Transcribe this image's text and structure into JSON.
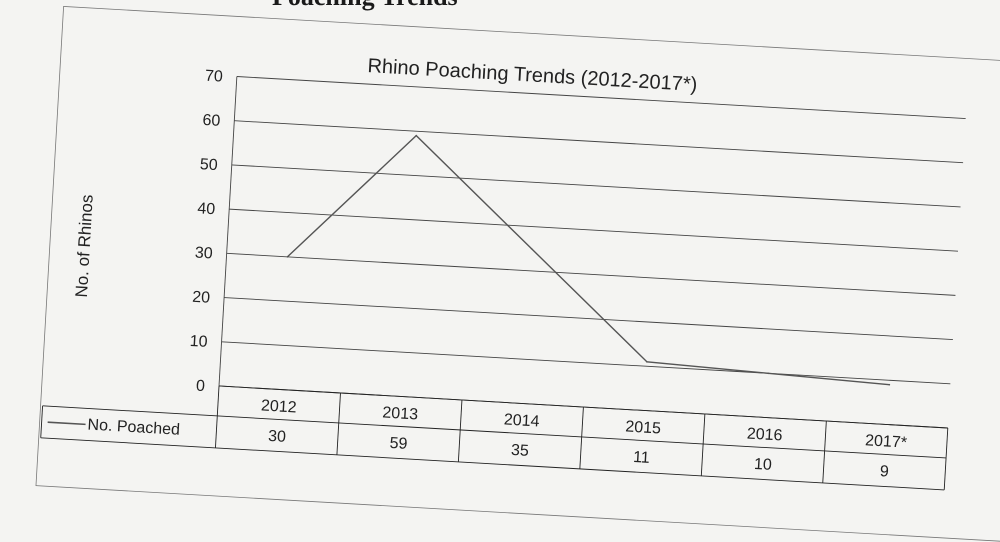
{
  "page": {
    "heading": "Poaching Trends"
  },
  "chart_data": {
    "type": "line",
    "title": "Rhino Poaching Trends (2012-2017*)",
    "xlabel": "",
    "ylabel": "No. of Rhinos",
    "ylim": [
      0,
      70
    ],
    "yticks": [
      0,
      10,
      20,
      30,
      40,
      50,
      60,
      70
    ],
    "grid": true,
    "legend": "data-table",
    "categories": [
      "2012",
      "2013",
      "2014",
      "2015",
      "2016",
      "2017*"
    ],
    "series": [
      {
        "name": "No. Poached",
        "values": [
          30,
          59,
          35,
          11,
          10,
          9
        ],
        "value_labels": [
          "30",
          "59",
          "35",
          "11",
          "10",
          "9"
        ]
      }
    ]
  },
  "colors": {
    "paper": "#f4f4f2",
    "ink": "#222222",
    "grid": "#444444",
    "line": "#555555"
  }
}
